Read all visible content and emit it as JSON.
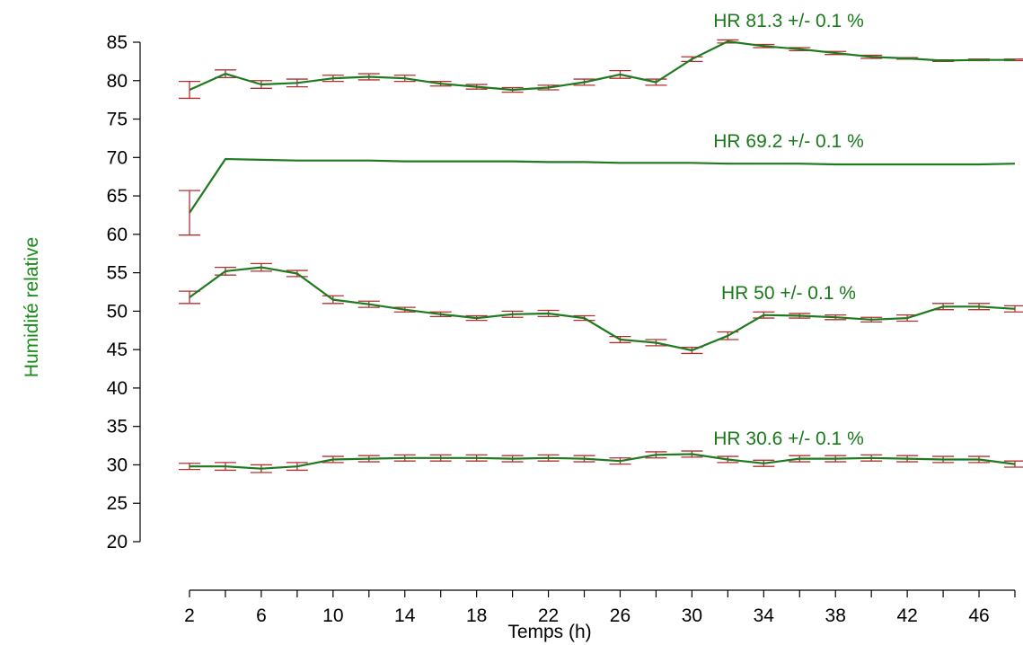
{
  "colors": {
    "line": "#1f7a1f",
    "error_bar": "#b03030",
    "axis": "#000000",
    "ylabel": "#1a8a1a",
    "xlabel": "#000000",
    "annotation": "#1a7a1a"
  },
  "chart_data": {
    "type": "line",
    "xlabel": "Temps (h)",
    "ylabel": "Humidité relative",
    "xlim": [
      2,
      48
    ],
    "ylim": [
      20,
      85
    ],
    "xticks": [
      2,
      6,
      10,
      14,
      18,
      22,
      26,
      30,
      34,
      38,
      42,
      46
    ],
    "yticks": [
      20,
      25,
      30,
      35,
      40,
      45,
      50,
      55,
      60,
      65,
      70,
      75,
      80,
      85
    ],
    "grid": false,
    "legend": "none",
    "x": [
      2,
      4,
      6,
      8,
      10,
      12,
      14,
      16,
      18,
      20,
      22,
      24,
      26,
      28,
      30,
      32,
      34,
      36,
      38,
      40,
      42,
      44,
      46,
      48
    ],
    "series": [
      {
        "name": "HR 81.3 +/- 0.1 %",
        "values": [
          78.8,
          80.9,
          79.5,
          79.7,
          80.3,
          80.5,
          80.3,
          79.6,
          79.2,
          78.8,
          79.1,
          79.8,
          80.8,
          79.8,
          82.8,
          85.1,
          84.5,
          84.1,
          83.6,
          83.1,
          82.9,
          82.6,
          82.7,
          82.7
        ],
        "errors": [
          1.1,
          0.5,
          0.5,
          0.5,
          0.4,
          0.4,
          0.4,
          0.3,
          0.3,
          0.3,
          0.3,
          0.4,
          0.5,
          0.4,
          0.3,
          0.2,
          0.2,
          0.2,
          0.2,
          0.2,
          0.1,
          0.1,
          0.1,
          0.1
        ]
      },
      {
        "name": "HR 69.2 +/- 0.1 %",
        "values": [
          62.8,
          69.8,
          69.7,
          69.6,
          69.6,
          69.6,
          69.5,
          69.5,
          69.5,
          69.5,
          69.4,
          69.4,
          69.3,
          69.3,
          69.3,
          69.2,
          69.2,
          69.2,
          69.1,
          69.1,
          69.1,
          69.1,
          69.1,
          69.2
        ],
        "errors": [
          2.9,
          0.0,
          0.0,
          0.0,
          0.0,
          0.0,
          0.0,
          0.0,
          0.0,
          0.0,
          0.0,
          0.0,
          0.0,
          0.0,
          0.0,
          0.0,
          0.0,
          0.0,
          0.0,
          0.0,
          0.0,
          0.0,
          0.0,
          0.0
        ]
      },
      {
        "name": "HR 50 +/- 0.1 %",
        "values": [
          51.8,
          55.2,
          55.7,
          54.9,
          51.5,
          50.9,
          50.2,
          49.6,
          49.1,
          49.6,
          49.7,
          49.1,
          46.3,
          45.9,
          44.9,
          46.8,
          49.5,
          49.4,
          49.2,
          48.9,
          49.1,
          50.6,
          50.6,
          50.3
        ],
        "errors": [
          0.8,
          0.5,
          0.5,
          0.4,
          0.5,
          0.4,
          0.3,
          0.3,
          0.3,
          0.4,
          0.4,
          0.3,
          0.4,
          0.4,
          0.4,
          0.5,
          0.4,
          0.3,
          0.3,
          0.3,
          0.4,
          0.4,
          0.4,
          0.4
        ]
      },
      {
        "name": "HR 30.6 +/- 0.1 %",
        "values": [
          29.8,
          29.8,
          29.5,
          29.8,
          30.7,
          30.8,
          30.9,
          30.9,
          30.9,
          30.8,
          30.9,
          30.8,
          30.5,
          31.3,
          31.4,
          30.7,
          30.2,
          30.8,
          30.8,
          30.9,
          30.8,
          30.7,
          30.7,
          30.1
        ],
        "errors": [
          0.4,
          0.5,
          0.5,
          0.5,
          0.4,
          0.4,
          0.4,
          0.4,
          0.4,
          0.4,
          0.4,
          0.4,
          0.4,
          0.4,
          0.4,
          0.4,
          0.4,
          0.4,
          0.4,
          0.4,
          0.4,
          0.4,
          0.4,
          0.4
        ]
      }
    ]
  }
}
